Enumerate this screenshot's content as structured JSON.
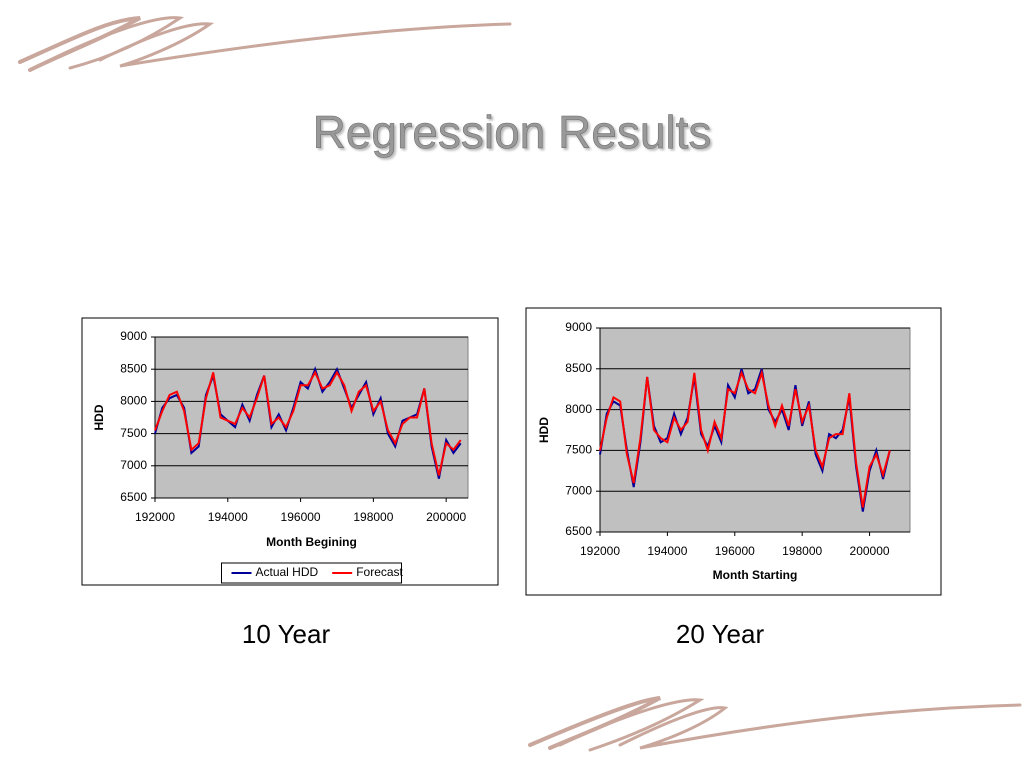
{
  "title": "Regression Results",
  "chart_data": [
    {
      "type": "line",
      "caption": "10 Year",
      "x_label": "Month Begining",
      "y_label": "HDD",
      "x": [
        192000,
        192200,
        192400,
        192600,
        192800,
        193000,
        193200,
        193400,
        193600,
        193800,
        194000,
        194200,
        194400,
        194600,
        194800,
        195000,
        195200,
        195400,
        195600,
        195800,
        196000,
        196200,
        196400,
        196600,
        196800,
        197000,
        197200,
        197400,
        197600,
        197800,
        198000,
        198200,
        198400,
        198600,
        198800,
        199000,
        199200,
        199400,
        199600,
        199800,
        200000,
        200200,
        200400
      ],
      "series": [
        {
          "name": "Actual HDD",
          "color": "#000099",
          "values": [
            7500,
            7900,
            8050,
            8100,
            7900,
            7200,
            7300,
            8100,
            8400,
            7800,
            7700,
            7600,
            7950,
            7700,
            8100,
            8400,
            7600,
            7800,
            7550,
            7900,
            8300,
            8200,
            8500,
            8150,
            8300,
            8500,
            8200,
            7900,
            8100,
            8300,
            7800,
            8050,
            7500,
            7300,
            7700,
            7750,
            7800,
            8200,
            7300,
            6800,
            7400,
            7200,
            7350
          ]
        },
        {
          "name": "Forecast",
          "color": "#ff0000",
          "values": [
            7550,
            7850,
            8100,
            8150,
            7850,
            7250,
            7350,
            8050,
            8450,
            7750,
            7700,
            7650,
            7900,
            7750,
            8050,
            8400,
            7650,
            7750,
            7600,
            7850,
            8250,
            8250,
            8450,
            8200,
            8250,
            8450,
            8250,
            7850,
            8150,
            8250,
            7850,
            8000,
            7550,
            7350,
            7650,
            7750,
            7750,
            8200,
            7350,
            6850,
            7350,
            7250,
            7400
          ]
        }
      ],
      "xlim": [
        192000,
        200600
      ],
      "xticks": [
        192000,
        194000,
        196000,
        198000,
        200000
      ],
      "ylim": [
        6500,
        9000
      ],
      "yticks": [
        6500,
        7000,
        7500,
        8000,
        8500,
        9000
      ],
      "grid": true,
      "legend": "bottom"
    },
    {
      "type": "line",
      "caption": "20 Year",
      "x_label": "Month Starting",
      "y_label": "HDD",
      "x": [
        192000,
        192200,
        192400,
        192600,
        192800,
        193000,
        193200,
        193400,
        193600,
        193800,
        194000,
        194200,
        194400,
        194600,
        194800,
        195000,
        195200,
        195400,
        195600,
        195800,
        196000,
        196200,
        196400,
        196600,
        196800,
        197000,
        197200,
        197400,
        197600,
        197800,
        198000,
        198200,
        198400,
        198600,
        198800,
        199000,
        199200,
        199400,
        199600,
        199800,
        200000,
        200200,
        200400,
        200600
      ],
      "series": [
        {
          "name": "Actual HDD",
          "color": "#000099",
          "values": [
            7450,
            7950,
            8100,
            8050,
            7500,
            7050,
            7600,
            8400,
            7800,
            7600,
            7650,
            7950,
            7700,
            7900,
            8400,
            7700,
            7550,
            7800,
            7600,
            8300,
            8150,
            8500,
            8200,
            8250,
            8500,
            8000,
            7850,
            8000,
            7750,
            8300,
            7800,
            8100,
            7450,
            7250,
            7700,
            7650,
            7750,
            8150,
            7300,
            6750,
            7250,
            7500,
            7150,
            7500
          ]
        },
        {
          "name": "Forecast",
          "color": "#ff0000",
          "values": [
            7500,
            7900,
            8150,
            8100,
            7450,
            7100,
            7650,
            8400,
            7750,
            7650,
            7600,
            7900,
            7750,
            7850,
            8450,
            7750,
            7500,
            7850,
            7650,
            8250,
            8200,
            8450,
            8250,
            8200,
            8450,
            8050,
            7800,
            8050,
            7800,
            8250,
            7850,
            8050,
            7500,
            7300,
            7650,
            7700,
            7700,
            8200,
            7350,
            6800,
            7300,
            7450,
            7200,
            7500
          ]
        }
      ],
      "xlim": [
        192000,
        201200
      ],
      "xticks": [
        192000,
        194000,
        196000,
        198000,
        200000
      ],
      "ylim": [
        6500,
        9000
      ],
      "yticks": [
        6500,
        7000,
        7500,
        8000,
        8500,
        9000
      ],
      "grid": true
    }
  ]
}
